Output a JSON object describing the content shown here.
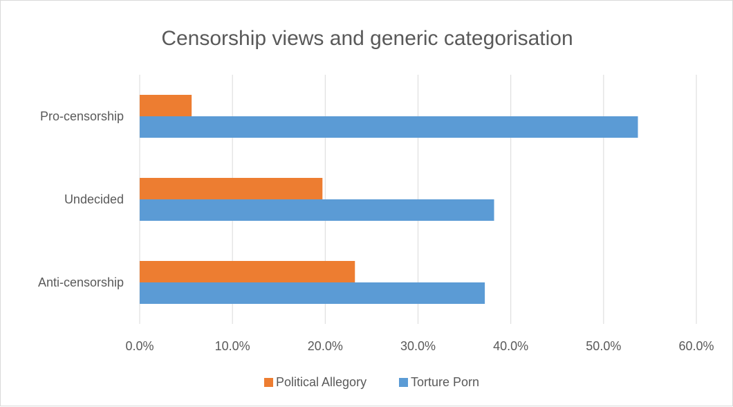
{
  "chart_data": {
    "type": "bar",
    "orientation": "horizontal",
    "title": "Censorship views and generic categorisation",
    "categories": [
      "Pro-censorship",
      "Undecided",
      "Anti-censorship"
    ],
    "series": [
      {
        "name": "Political Allegory",
        "color": "#ed7d31",
        "values": [
          5.6,
          19.7,
          23.2
        ]
      },
      {
        "name": "Torture Porn",
        "color": "#5b9bd5",
        "values": [
          53.7,
          38.2,
          37.2
        ]
      }
    ],
    "xlim": [
      0,
      60
    ],
    "x_ticks": [
      "0.0%",
      "10.0%",
      "20.0%",
      "30.0%",
      "40.0%",
      "50.0%",
      "60.0%"
    ],
    "x_tick_values": [
      0,
      10,
      20,
      30,
      40,
      50,
      60
    ],
    "grid": true,
    "legend": "bottom",
    "gridline_color": "#d9d9d9",
    "axis_text_color": "#595959"
  }
}
